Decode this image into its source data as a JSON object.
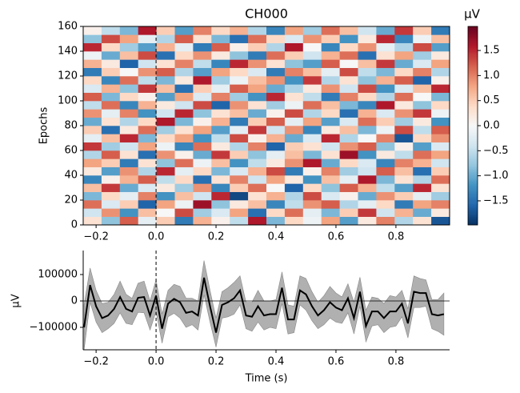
{
  "chart_data": [
    {
      "type": "heatmap",
      "title": "CH000",
      "ylabel": "Epochs",
      "colorbar_label": "µV",
      "xlim": [
        -0.243,
        0.979
      ],
      "ylim": [
        0,
        160
      ],
      "xticks": [
        {
          "value": -0.2,
          "label": "−0.2"
        },
        {
          "value": 0,
          "label": "0.0"
        },
        0.2,
        0.4,
        0.6,
        0.8
      ],
      "yticks": [
        0,
        20,
        40,
        60,
        80,
        100,
        120,
        140,
        160
      ],
      "vline": 0,
      "clim": [
        -1.98,
        1.98
      ],
      "cticks": [
        {
          "value": -1.5,
          "label": "−1.5"
        },
        {
          "value": -1,
          "label": "−1.0"
        },
        {
          "value": -0.5,
          "label": "−0.5"
        },
        {
          "value": 0,
          "label": "0.0"
        },
        0.5,
        {
          "value": 1,
          "label": "1.0"
        },
        1.5
      ],
      "colormap": [
        "#053061",
        "#2166ac",
        "#4393c3",
        "#92c5de",
        "#d1e5f0",
        "#f7f7f7",
        "#fddbc7",
        "#f4a582",
        "#d6604d",
        "#b2182b",
        "#67001f"
      ],
      "values": [
        [
          0.3,
          -0.8,
          1.2,
          -0.2,
          0.5,
          -1.4,
          0.7,
          0.1,
          -0.5,
          1.6,
          -0.9,
          0.4,
          -0.1,
          0.8,
          -1.1,
          0.2,
          1.0,
          -0.6,
          0.3,
          -1.7
        ],
        [
          -0.4,
          0.9,
          -1.2,
          0.6,
          0.0,
          1.3,
          -0.7,
          -0.3,
          0.8,
          -1.5,
          0.4,
          1.1,
          -0.2,
          -0.9,
          0.5,
          1.4,
          -0.4,
          0.7,
          -1.0,
          0.2
        ],
        [
          1.1,
          -0.3,
          0.5,
          -1.6,
          0.8,
          -0.1,
          1.7,
          -0.8,
          0.2,
          0.6,
          -1.3,
          -0.5,
          0.9,
          1.2,
          -0.6,
          -0.2,
          0.4,
          -1.4,
          0.8,
          1.0
        ],
        [
          -0.9,
          0.4,
          -0.2,
          1.0,
          -1.2,
          0.6,
          -0.4,
          1.5,
          -1.8,
          0.3,
          0.7,
          -0.6,
          1.3,
          -0.3,
          0.1,
          -1.0,
          0.9,
          0.5,
          -0.2,
          -0.7
        ],
        [
          0.6,
          1.4,
          -1.0,
          -0.3,
          0.2,
          -0.7,
          0.9,
          -1.3,
          0.5,
          1.1,
          0.0,
          -1.6,
          0.4,
          -0.8,
          1.2,
          0.7,
          -0.5,
          -1.1,
          1.5,
          0.3
        ],
        [
          -1.3,
          0.1,
          0.7,
          1.2,
          -0.5,
          0.4,
          -1.5,
          0.3,
          1.0,
          -0.4,
          0.8,
          0.2,
          -1.2,
          0.6,
          -0.2,
          1.6,
          -0.9,
          0.3,
          -0.6,
          1.1
        ],
        [
          0.2,
          -1.1,
          0.9,
          -0.6,
          1.5,
          -0.2,
          0.4,
          -0.9,
          -0.3,
          0.7,
          1.3,
          -1.4,
          0.1,
          1.0,
          -0.7,
          -0.4,
          1.2,
          0.6,
          -1.5,
          0.5
        ],
        [
          0.8,
          0.5,
          -1.4,
          0.3,
          -0.8,
          1.1,
          -0.1,
          0.6,
          -1.2,
          -0.5,
          0.2,
          0.9,
          1.6,
          -1.0,
          0.4,
          -0.3,
          -1.3,
          1.0,
          0.7,
          -0.4
        ],
        [
          -0.6,
          1.2,
          0.3,
          -1.5,
          0.9,
          0.1,
          -1.0,
          1.4,
          0.5,
          -0.8,
          -0.2,
          0.6,
          -0.9,
          0.3,
          1.7,
          -1.2,
          0.2,
          -0.5,
          1.1,
          0.8
        ],
        [
          1.4,
          -0.7,
          -0.4,
          0.8,
          -0.1,
          -1.3,
          1.1,
          0.2,
          -0.6,
          1.0,
          -1.6,
          0.5,
          0.3,
          -0.4,
          0.9,
          1.2,
          -0.8,
          0.1,
          -1.1,
          -0.3
        ],
        [
          -0.2,
          0.6,
          1.5,
          -0.9,
          0.4,
          0.8,
          -1.2,
          -0.5,
          1.3,
          0.1,
          0.7,
          -1.0,
          -0.3,
          1.5,
          -0.6,
          0.0,
          1.0,
          -1.7,
          0.4,
          0.9
        ],
        [
          0.5,
          -1.5,
          0.2,
          1.1,
          -0.7,
          0.3,
          0.8,
          -1.1,
          -0.2,
          1.4,
          -0.4,
          0.9,
          -1.3,
          0.2,
          0.6,
          -0.9,
          -0.1,
          1.3,
          -0.5,
          1.2
        ],
        [
          -1.0,
          0.3,
          -0.6,
          0.4,
          1.6,
          -0.9,
          0.1,
          0.7,
          -1.4,
          0.5,
          1.2,
          -0.2,
          0.8,
          -1.1,
          -0.3,
          1.1,
          0.5,
          -0.7,
          0.2,
          -1.2
        ],
        [
          0.9,
          -0.2,
          1.0,
          -1.2,
          -0.4,
          1.5,
          -0.8,
          0.3,
          0.6,
          -1.0,
          0.1,
          1.3,
          -0.6,
          0.4,
          -1.5,
          0.7,
          -0.3,
          0.9,
          1.4,
          -0.1
        ],
        [
          -0.5,
          1.1,
          -1.3,
          0.7,
          0.2,
          -0.4,
          1.3,
          -1.6,
          0.9,
          0.3,
          -0.7,
          -0.1,
          1.1,
          0.6,
          -0.9,
          -1.3,
          1.6,
          0.2,
          -0.8,
          0.4
        ],
        [
          1.2,
          -0.9,
          0.4,
          0.1,
          -1.1,
          0.8,
          -0.3,
          1.0,
          -0.7,
          -1.2,
          1.5,
          0.3,
          -0.5,
          -1.4,
          1.0,
          0.4,
          -0.6,
          1.1,
          0.0,
          -0.9
        ],
        [
          -0.3,
          0.7,
          -0.8,
          1.4,
          0.6,
          -1.5,
          0.5,
          -0.2,
          1.2,
          0.8,
          -1.0,
          -0.6,
          0.2,
          0.9,
          -0.4,
          1.3,
          -1.2,
          -0.3,
          0.6,
          1.5
        ],
        [
          0.4,
          -1.3,
          1.1,
          -0.5,
          -0.9,
          0.2,
          1.6,
          -0.7,
          -0.1,
          0.6,
          0.9,
          -1.2,
          1.4,
          -0.6,
          0.3,
          -0.8,
          0.7,
          1.2,
          -1.6,
          0.1
        ],
        [
          -1.4,
          0.5,
          0.0,
          0.9,
          1.2,
          -0.6,
          -1.1,
          0.8,
          0.4,
          -0.3,
          -1.4,
          1.0,
          0.6,
          -0.2,
          1.3,
          -0.5,
          -0.9,
          0.4,
          1.0,
          -0.6
        ],
        [
          0.7,
          0.2,
          -1.6,
          -0.4,
          0.3,
          1.0,
          -0.5,
          -1.3,
          1.5,
          0.9,
          0.3,
          -0.8,
          -1.1,
          1.2,
          0.0,
          0.6,
          1.4,
          -1.0,
          -0.3,
          0.8
        ],
        [
          -0.1,
          -1.0,
          0.6,
          1.3,
          -1.5,
          0.4,
          0.9,
          0.2,
          -0.8,
          -1.4,
          1.1,
          0.5,
          -0.4,
          0.7,
          1.1,
          -1.5,
          0.3,
          0.8,
          -0.7,
          0.2
        ],
        [
          1.5,
          0.4,
          -0.7,
          -1.1,
          0.7,
          -0.2,
          -1.4,
          1.2,
          0.1,
          0.5,
          -0.6,
          1.6,
          0.0,
          -1.3,
          0.4,
          0.9,
          -0.2,
          -0.6,
          1.3,
          -1.1
        ],
        [
          -0.8,
          1.3,
          0.8,
          -0.2,
          -0.6,
          1.2,
          0.3,
          -0.9,
          -1.5,
          1.1,
          0.4,
          -0.3,
          0.9,
          0.5,
          -1.2,
          0.2,
          1.5,
          -1.3,
          -0.1,
          0.6
        ],
        [
          0.1,
          -0.5,
          -0.9,
          1.6,
          0.5,
          -1.1,
          1.0,
          0.4,
          0.7,
          -0.6,
          -1.3,
          0.8,
          -0.7,
          1.1,
          0.6,
          -0.4,
          -1.0,
          1.4,
          0.5,
          -1.4
        ]
      ]
    },
    {
      "type": "line",
      "xlabel": "Time (s)",
      "ylabel": "µV",
      "xlim": [
        -0.243,
        0.979
      ],
      "ylim": [
        -185000,
        191000
      ],
      "xticks": [
        {
          "value": -0.2,
          "label": "−0.2"
        },
        {
          "value": 0,
          "label": "0.0"
        },
        0.2,
        0.4,
        0.6,
        0.8
      ],
      "yticks": [
        {
          "value": -100000,
          "label": "−100000"
        },
        0,
        100000
      ],
      "vline": 0,
      "hline": 0,
      "color": "#000000",
      "band_color": "#b0b0b0",
      "x": [
        -0.24,
        -0.22,
        -0.2,
        -0.18,
        -0.16,
        -0.14,
        -0.12,
        -0.1,
        -0.08,
        -0.06,
        -0.04,
        -0.02,
        0,
        0.02,
        0.04,
        0.06,
        0.08,
        0.1,
        0.12,
        0.14,
        0.16,
        0.18,
        0.2,
        0.22,
        0.24,
        0.26,
        0.28,
        0.3,
        0.32,
        0.34,
        0.36,
        0.38,
        0.4,
        0.42,
        0.44,
        0.46,
        0.48,
        0.5,
        0.52,
        0.54,
        0.56,
        0.58,
        0.6,
        0.62,
        0.64,
        0.66,
        0.68,
        0.7,
        0.72,
        0.74,
        0.76,
        0.78,
        0.8,
        0.82,
        0.84,
        0.86,
        0.88,
        0.9,
        0.92,
        0.94,
        0.96
      ],
      "values": [
        -100000,
        60000,
        -20000,
        -65000,
        -55000,
        -30000,
        15000,
        -30000,
        -40000,
        12000,
        15000,
        -55000,
        20000,
        -105000,
        -10000,
        8000,
        -5000,
        -45000,
        -40000,
        -55000,
        88000,
        -20000,
        -120000,
        -15000,
        -5000,
        10000,
        40000,
        -55000,
        -60000,
        -20000,
        -55000,
        -50000,
        -50000,
        50000,
        -70000,
        -70000,
        40000,
        25000,
        -20000,
        -55000,
        -35000,
        -5000,
        -25000,
        -35000,
        10000,
        -65000,
        35000,
        -95000,
        -40000,
        -40000,
        -65000,
        -40000,
        -40000,
        -10000,
        -85000,
        35000,
        30000,
        30000,
        -50000,
        -55000,
        -50000
      ],
      "error": [
        85000,
        65000,
        60000,
        55000,
        50000,
        55000,
        60000,
        55000,
        50000,
        55000,
        60000,
        55000,
        60000,
        55000,
        50000,
        55000,
        60000,
        55000,
        50000,
        55000,
        65000,
        60000,
        55000,
        50000,
        55000,
        60000,
        55000,
        50000,
        55000,
        60000,
        55000,
        50000,
        55000,
        60000,
        55000,
        50000,
        55000,
        60000,
        55000,
        50000,
        55000,
        60000,
        55000,
        50000,
        55000,
        60000,
        55000,
        60000,
        55000,
        50000,
        55000,
        60000,
        55000,
        50000,
        55000,
        60000,
        55000,
        50000,
        55000,
        60000,
        80000
      ]
    }
  ]
}
